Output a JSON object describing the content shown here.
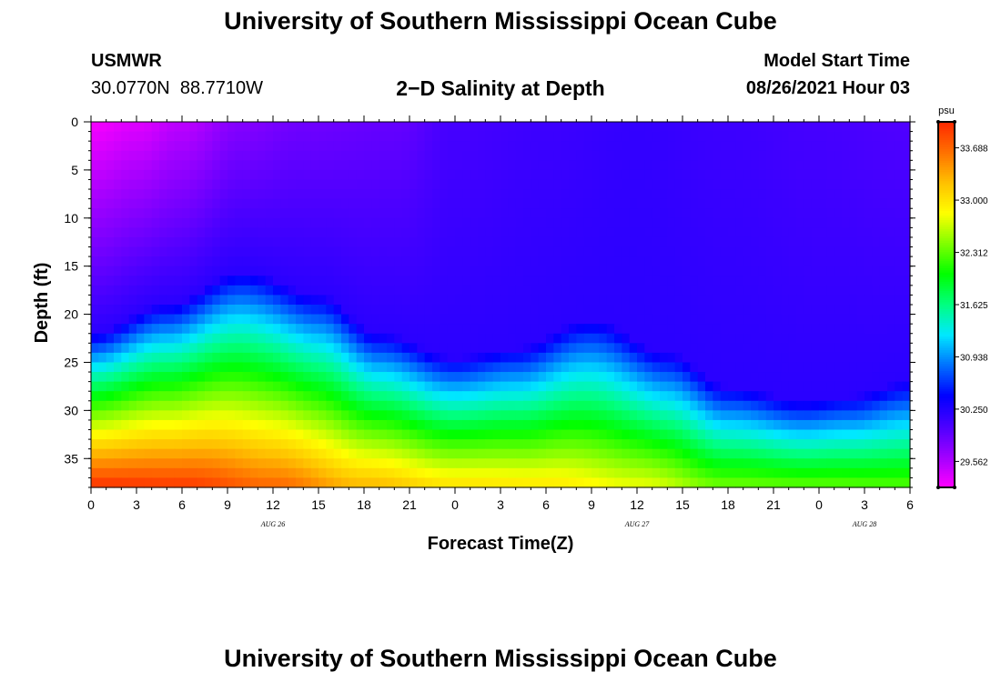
{
  "page": {
    "title_top": "University of Southern Mississippi Ocean Cube",
    "title_bottom": "University of Southern Mississippi Ocean Cube",
    "station": "USMWR",
    "coordinates": "30.0770N  88.7710W",
    "subtitle": "2−D Salinity at Depth",
    "model_start_label": "Model Start Time",
    "model_start_value": "08/26/2021 Hour 03"
  },
  "chart_data": {
    "type": "heatmap",
    "title": "2−D Salinity at Depth",
    "xlabel": "Forecast Time(Z)",
    "ylabel": "Depth (ft)",
    "x_range_hours": [
      0,
      54
    ],
    "x_ticks": [
      "0",
      "3",
      "6",
      "9",
      "12",
      "15",
      "18",
      "21",
      "0",
      "3",
      "6",
      "9",
      "12",
      "15",
      "18",
      "21",
      "0",
      "3",
      "6"
    ],
    "x_tick_hours": [
      0,
      3,
      6,
      9,
      12,
      15,
      18,
      21,
      24,
      27,
      30,
      33,
      36,
      39,
      42,
      45,
      48,
      51,
      54
    ],
    "date_labels": [
      {
        "text": "AUG 26",
        "hour": 12
      },
      {
        "text": "AUG 27",
        "hour": 36
      },
      {
        "text": "AUG 28",
        "hour": 51
      }
    ],
    "y_ticks": [
      "0",
      "5",
      "10",
      "15",
      "20",
      "25",
      "30",
      "35"
    ],
    "y_tick_values": [
      0,
      5,
      10,
      15,
      20,
      25,
      30,
      35
    ],
    "y_range": [
      0,
      38
    ],
    "y_reversed": true,
    "colorbar": {
      "unit": "psu",
      "min": 29.22,
      "max": 34.03,
      "labels": [
        "33.688",
        "33.000",
        "32.312",
        "31.625",
        "30.938",
        "30.250",
        "29.562"
      ],
      "label_values": [
        33.688,
        33.0,
        32.312,
        31.625,
        30.938,
        30.25,
        29.562
      ],
      "colors": [
        "#ff00ff",
        "#a000ff",
        "#4b00ff",
        "#0000ff",
        "#0070ff",
        "#00e8ff",
        "#00ff80",
        "#00ff00",
        "#80ff00",
        "#ffff00",
        "#ffc000",
        "#ff7000",
        "#ff2800"
      ]
    },
    "halocline_depth_ft": {
      "hours": [
        0,
        5,
        10,
        15,
        19,
        24,
        28,
        33,
        38,
        42,
        47,
        50,
        54
      ],
      "depths": [
        22,
        19,
        15.5,
        18,
        22,
        24.5,
        23.5,
        20.5,
        24,
        27.5,
        29,
        28.5,
        27
      ]
    },
    "deep_layer_salinity_psu": {
      "hours": [
        0,
        6,
        12,
        18,
        24,
        30,
        36,
        42,
        48,
        54
      ],
      "values": [
        34.0,
        33.95,
        33.7,
        33.3,
        33.05,
        33.0,
        32.8,
        32.4,
        32.35,
        32.3
      ]
    },
    "surface_salinity_psu": {
      "hours": [
        0,
        3,
        6,
        10,
        14,
        20,
        24,
        30,
        36,
        42,
        48,
        54
      ],
      "values": [
        29.25,
        29.35,
        29.5,
        29.75,
        29.85,
        29.9,
        30.05,
        30.1,
        30.15,
        30.1,
        30.05,
        30.0
      ]
    }
  }
}
